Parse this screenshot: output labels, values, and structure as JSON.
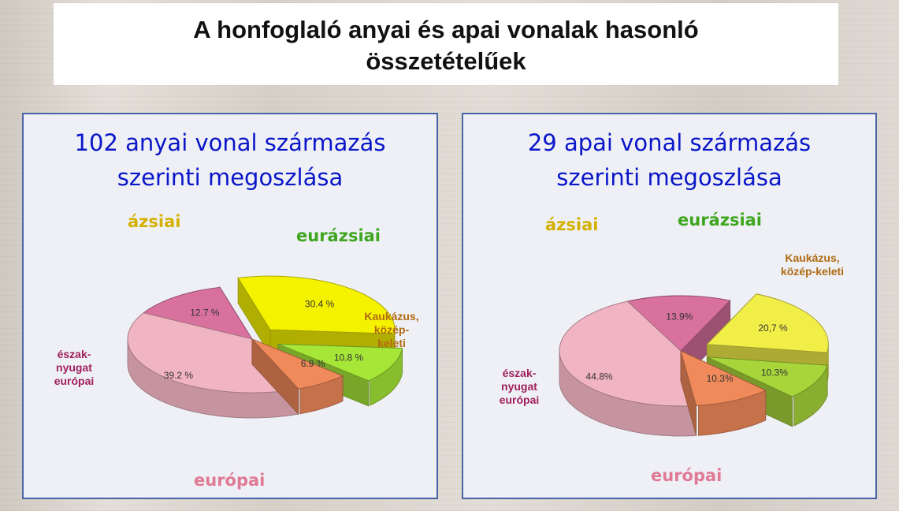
{
  "page": {
    "title_line1": "A honfoglaló anyai és apai vonalak hasonló",
    "title_line2": "összetételűek"
  },
  "chart_data": [
    {
      "type": "pie",
      "title_line1": "102 anyai vonal származás",
      "title_line2": "szerinti megoszlása",
      "categories": [
        "ázsiai",
        "eurázsiai",
        "Kaukázus, közép-keleti",
        "európai",
        "észak-nyugat európai"
      ],
      "values": [
        30.4,
        10.8,
        6.9,
        39.2,
        12.7
      ],
      "data_labels": [
        "30.4 %",
        "10.8 %",
        "6.9 %",
        "39.2 %",
        "12.7 %"
      ],
      "category_labels": {
        "asian": "ázsiai",
        "eurasian": "eurázsiai",
        "caucasus_line1": "Kaukázus,",
        "caucasus_line2": "közép-",
        "caucasus_line3": "keleti",
        "european": "európai",
        "nw_line1": "észak-",
        "nw_line2": "nyugat",
        "nw_line3": "európai"
      },
      "colors": [
        "#f5f200",
        "#a6e637",
        "#f08a5a",
        "#f1b4c2",
        "#d9719e"
      ],
      "exploded": [
        "ázsiai",
        "eurázsiai"
      ],
      "label_colors": {
        "ázsiai": "#d4b000",
        "eurázsiai": "#3ea61e",
        "Kaukázus, közép-keleti": "#b06a10",
        "európai": "#e07a94",
        "észak-nyugat európai": "#a0205c"
      }
    },
    {
      "type": "pie",
      "title_line1": "29 apai vonal származás",
      "title_line2": "szerinti megoszlása",
      "categories": [
        "ázsiai",
        "eurázsiai",
        "Kaukázus, közép-keleti",
        "európai",
        "észak-nyugat európai"
      ],
      "values": [
        20.7,
        10.3,
        10.3,
        44.8,
        13.9
      ],
      "data_labels": [
        "20,7 %",
        "10.3%",
        "10.3%",
        "44.8%",
        "13.9%"
      ],
      "category_labels": {
        "asian": "ázsiai",
        "eurasian": "eurázsiai",
        "caucasus_line1": "Kaukázus,",
        "caucasus_line2": "közép-keleti",
        "european": "európai",
        "nw_line1": "észak-",
        "nw_line2": "nyugat",
        "nw_line3": "európai"
      },
      "colors": [
        "#f2ee48",
        "#a8d63a",
        "#f08a5a",
        "#f1b4c2",
        "#d9719e"
      ],
      "exploded": [
        "ázsiai",
        "eurázsiai"
      ],
      "label_colors": {
        "ázsiai": "#d4b000",
        "eurázsiai": "#3ea61e",
        "Kaukázus, közép-keleti": "#b06a10",
        "európai": "#e07a94",
        "észak-nyugat európai": "#a0205c"
      }
    }
  ]
}
